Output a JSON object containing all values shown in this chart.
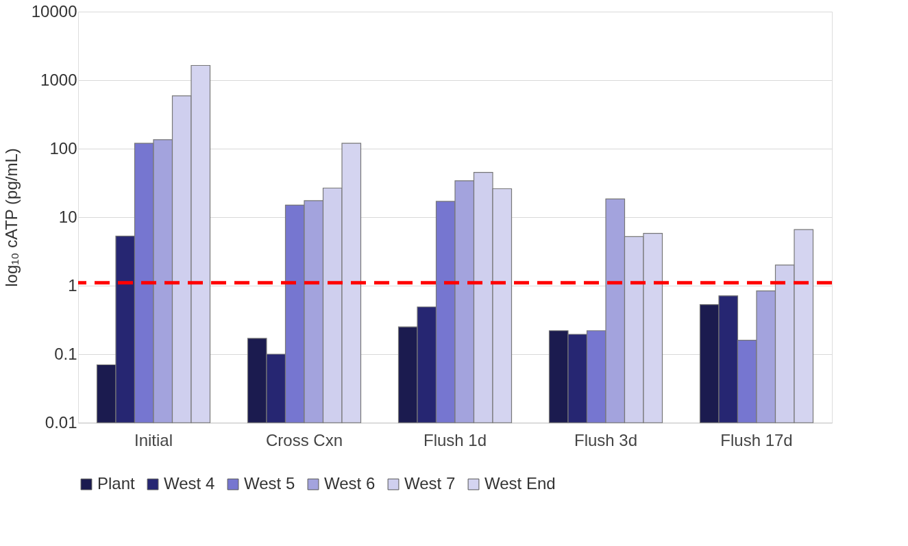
{
  "chart_data": {
    "type": "bar",
    "ylabel": "log₁₀ cATP (pg/mL)",
    "categories": [
      "Initial",
      "Cross Cxn",
      "Flush 1d",
      "Flush 3d",
      "Flush 17d"
    ],
    "series": [
      {
        "name": "Plant",
        "color": "#1b1b4f",
        "values": [
          0.07,
          0.17,
          0.25,
          0.22,
          0.53
        ]
      },
      {
        "name": "West 4",
        "color": "#262672",
        "values": [
          5.3,
          0.1,
          0.49,
          0.195,
          0.71
        ]
      },
      {
        "name": "West 5",
        "color": "#7676d0",
        "values": [
          120,
          15,
          17,
          0.22,
          0.16
        ]
      },
      {
        "name": "West 6",
        "color": "#a3a3dd",
        "values": [
          135,
          17.4,
          34,
          18.5,
          0.84
        ]
      },
      {
        "name": "West 7",
        "color": "#cfcfee",
        "values": [
          590,
          26.6,
          45,
          5.2,
          2.0
        ]
      },
      {
        "name": "West End",
        "color": "#d4d4f0",
        "values": [
          1640,
          120,
          26,
          5.8,
          6.6
        ]
      }
    ],
    "log": true,
    "ylim": [
      0.01,
      10000
    ],
    "yticks": [
      0.01,
      0.1,
      1,
      10,
      100,
      1000,
      10000
    ],
    "grid": "y",
    "legend": "bottom",
    "ref_lines": [
      {
        "axis": "y",
        "value": 1.1,
        "color": "#ff0000",
        "line_style": "dashed"
      }
    ]
  }
}
